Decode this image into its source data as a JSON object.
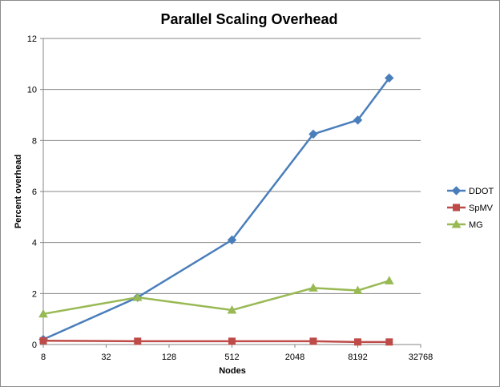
{
  "chart_data": {
    "type": "line",
    "title": "Parallel Scaling Overhead",
    "xlabel": "Nodes",
    "ylabel": "Percent overhead",
    "x_scale": "log2",
    "xlim": [
      8,
      32768
    ],
    "ylim": [
      0,
      12
    ],
    "x_ticks": [
      8,
      32,
      128,
      512,
      2048,
      8192,
      32768
    ],
    "x_tick_labels": [
      "8",
      "32",
      "128",
      "512",
      "2048",
      "8192",
      "32768"
    ],
    "y_ticks": [
      0,
      2,
      4,
      6,
      8,
      10,
      12
    ],
    "y_tick_labels": [
      "0",
      "2",
      "4",
      "6",
      "8",
      "10",
      "12"
    ],
    "grid": "horizontal",
    "legend_position": "right",
    "series": [
      {
        "name": "DDOT",
        "color": "#4a7ebb",
        "marker": "diamond",
        "x": [
          8,
          64,
          512,
          3072,
          8192,
          16384
        ],
        "y": [
          0.2,
          1.85,
          4.1,
          8.25,
          8.8,
          10.45
        ]
      },
      {
        "name": "SpMV",
        "color": "#be4b48",
        "marker": "square",
        "x": [
          8,
          64,
          512,
          3072,
          8192,
          16384
        ],
        "y": [
          0.15,
          0.13,
          0.13,
          0.13,
          0.1,
          0.1
        ]
      },
      {
        "name": "MG",
        "color": "#98b954",
        "marker": "triangle",
        "x": [
          8,
          64,
          512,
          3072,
          8192,
          16384
        ],
        "y": [
          1.2,
          1.85,
          1.35,
          2.22,
          2.12,
          2.5
        ]
      }
    ]
  }
}
